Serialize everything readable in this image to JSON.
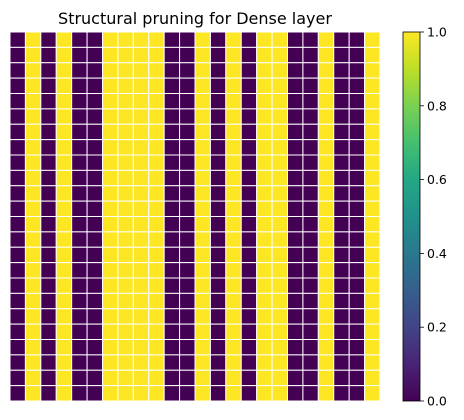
{
  "chart_data": {
    "type": "heatmap",
    "title": "Structural pruning for Dense layer",
    "colormap": "viridis",
    "value_range": [
      0.0,
      1.0
    ],
    "rows": 24,
    "column_pattern": [
      0,
      1,
      0,
      1,
      0,
      0,
      1,
      1,
      1,
      1,
      0,
      0,
      1,
      0,
      1,
      0,
      1,
      1,
      0,
      0,
      1,
      0,
      0,
      1
    ],
    "colorbar": {
      "ticks": [
        0.0,
        0.2,
        0.4,
        0.6,
        0.8,
        1.0
      ],
      "tick_labels": [
        "0.0",
        "0.2",
        "0.4",
        "0.6",
        "0.8",
        "1.0"
      ]
    },
    "grid": false,
    "axes_visible": false
  }
}
